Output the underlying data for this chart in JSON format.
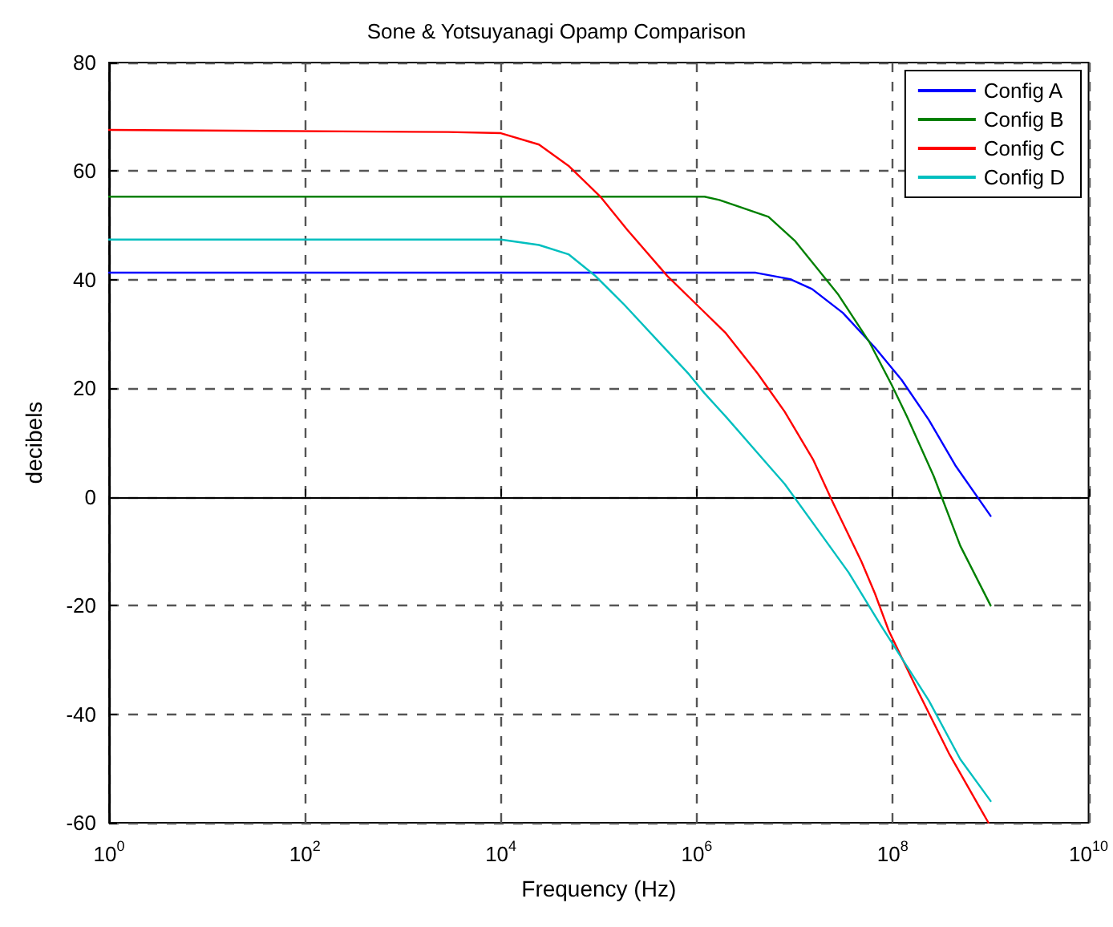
{
  "chart_data": {
    "type": "line",
    "title": "Sone & Yotsuyanagi Opamp Comparison",
    "xlabel": "Frequency (Hz)",
    "ylabel": "decibels",
    "log": "x",
    "grid": true,
    "legend": "top right",
    "marker": "none",
    "line_style": "solid",
    "xlim": [
      1,
      10000000000
    ],
    "ylim": [
      -60,
      80
    ],
    "xticks": [
      {
        "value": 1,
        "label": "10$^{0}$"
      },
      {
        "value": 100,
        "label": "10$^{2}$"
      },
      {
        "value": 10000,
        "label": "10$^{4}$"
      },
      {
        "value": 1000000,
        "label": "10$^{6}$"
      },
      {
        "value": 100000000,
        "label": "10$^{8}$"
      },
      {
        "value": 10000000000,
        "label": "10$^{10}$"
      }
    ],
    "yticks": [
      -60,
      -40,
      -20,
      0,
      20,
      40,
      60,
      80
    ],
    "series": [
      {
        "name": "Config A",
        "color": "#0000ff",
        "x": [
          1,
          4000000,
          9000000,
          15000000,
          31000000,
          66000000,
          123000000,
          234000000,
          437000000,
          1000000000
        ],
        "values": [
          41.3,
          41.3,
          40.1,
          38.3,
          33.9,
          27.5,
          21.6,
          14.2,
          5.8,
          -3.5
        ]
      },
      {
        "name": "Config B",
        "color": "#008000",
        "x": [
          1,
          1200000,
          1700000,
          5400000,
          10000000,
          27500000,
          57500000,
          98000000,
          141000000,
          263000000,
          490000000,
          1000000000
        ],
        "values": [
          55.3,
          55.3,
          54.7,
          51.6,
          47.2,
          37.4,
          28.6,
          20.6,
          14.7,
          3.8,
          -9,
          -20
        ]
      },
      {
        "name": "Config C",
        "color": "#ff0000",
        "x": [
          1,
          2900,
          10000,
          24500,
          49000,
          105000,
          195000,
          500000,
          1000000,
          1950000,
          4200000,
          7900000,
          15500000,
          24500000,
          48000000,
          66000000,
          91000000,
          178000000,
          380000000,
          950000000
        ],
        "values": [
          67.6,
          67.2,
          67,
          64.9,
          61,
          55.2,
          49.2,
          40.7,
          35.4,
          30.3,
          22.7,
          15.7,
          6.8,
          -1,
          -11.9,
          -17.8,
          -24.6,
          -35.5,
          -47.4,
          -60
        ]
      },
      {
        "name": "Config D",
        "color": "#00bfbf",
        "x": [
          1,
          10000,
          24500,
          49000,
          91000,
          182000,
          389000,
          832000,
          1200000,
          2000000,
          5400000,
          7900000,
          35500000,
          76000000,
          234000000,
          490000000,
          1000000000
        ],
        "values": [
          47.4,
          47.4,
          46.4,
          44.7,
          40.8,
          35.4,
          29,
          22.6,
          19.1,
          14.7,
          5.8,
          2.4,
          -13.9,
          -23.7,
          -37.5,
          -48.3,
          -56
        ]
      }
    ]
  }
}
